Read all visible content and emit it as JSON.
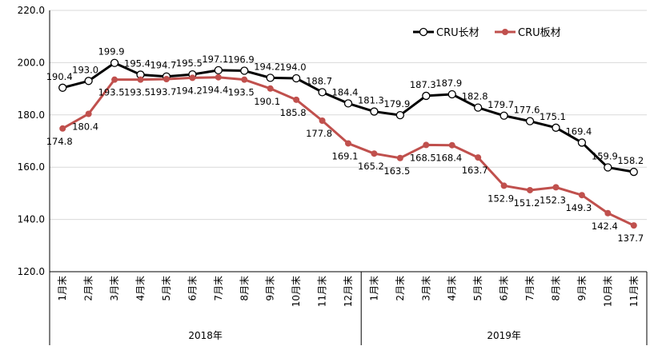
{
  "chart_data": {
    "type": "line",
    "title": "",
    "xlabel": "",
    "ylabel": "",
    "ylim": [
      120,
      220
    ],
    "yticks": [
      "120.0",
      "140.0",
      "160.0",
      "180.0",
      "200.0",
      "220.0"
    ],
    "grid": true,
    "legend_position": "top-right",
    "categories": [
      "1月末",
      "2月末",
      "3月末",
      "4月末",
      "5月末",
      "6月末",
      "7月末",
      "8月末",
      "9月末",
      "10月末",
      "11月末",
      "12月末",
      "1月末",
      "2月末",
      "3月末",
      "4月末",
      "5月末",
      "6月末",
      "7月末",
      "8月末",
      "9月末",
      "10月末",
      "11月末"
    ],
    "groups": [
      {
        "label": "2018年",
        "count": 12
      },
      {
        "label": "2019年",
        "count": 11
      }
    ],
    "series": [
      {
        "name": "CRU长材",
        "color": "#000000",
        "marker": "open-circle",
        "values": [
          190.4,
          193.0,
          199.9,
          195.4,
          194.7,
          195.5,
          197.1,
          196.9,
          194.2,
          194.0,
          188.7,
          184.4,
          181.3,
          179.9,
          187.3,
          187.9,
          182.8,
          179.7,
          177.6,
          175.1,
          169.4,
          159.9,
          158.2
        ]
      },
      {
        "name": "CRU板材",
        "color": "#C0504D",
        "marker": "filled-circle",
        "values": [
          174.8,
          180.4,
          193.5,
          193.5,
          193.7,
          194.2,
          194.4,
          193.5,
          190.1,
          185.8,
          177.8,
          169.1,
          165.2,
          163.5,
          168.5,
          168.4,
          163.7,
          152.9,
          151.2,
          152.3,
          149.3,
          142.4,
          137.7
        ]
      }
    ]
  }
}
